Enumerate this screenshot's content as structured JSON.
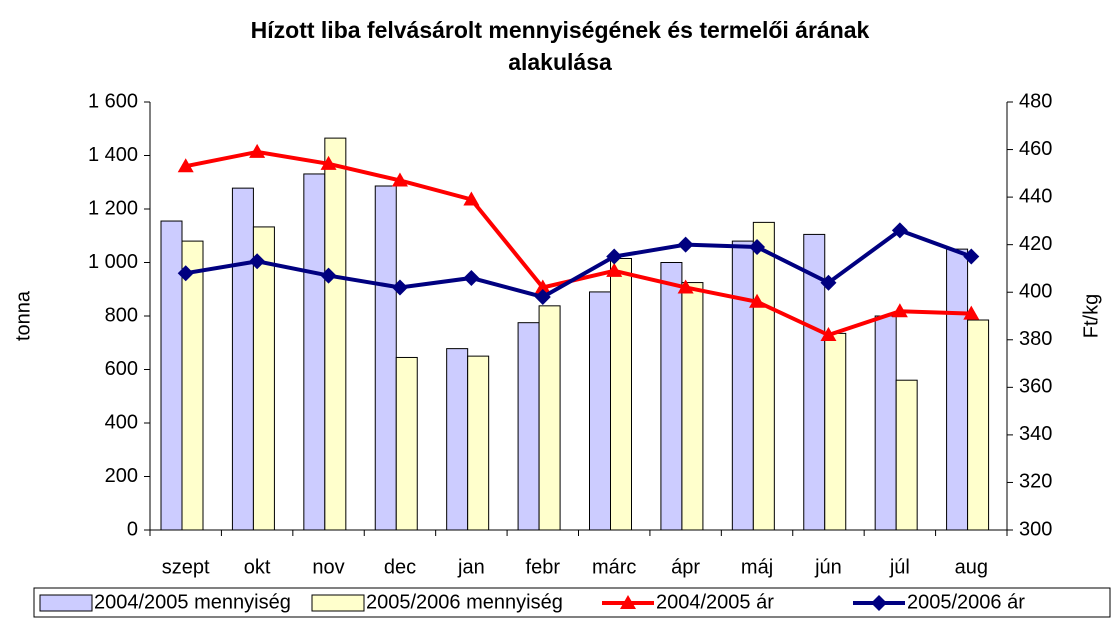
{
  "chart_data": {
    "type": "bar_line",
    "title": "Hízott liba felvásárolt mennyiségének és termelői árának",
    "title_line2": "alakulása",
    "ylabel": "tonna",
    "y2label": "Ft/kg",
    "categories": [
      "szept",
      "okt",
      "nov",
      "dec",
      "jan",
      "febr",
      "márc",
      "ápr",
      "máj",
      "jún",
      "júl",
      "aug"
    ],
    "ylim": [
      0,
      1600
    ],
    "yticks": [
      0,
      200,
      400,
      600,
      800,
      {
        "value": 1000,
        "label": "1 000"
      },
      {
        "value": 1200,
        "label": "1 200"
      },
      {
        "value": 1400,
        "label": "1 400"
      },
      {
        "value": 1600,
        "label": "1 600"
      }
    ],
    "y2lim": [
      300,
      480
    ],
    "y2ticks": [
      300,
      320,
      340,
      360,
      380,
      400,
      420,
      440,
      460,
      480
    ],
    "series": [
      {
        "name": "2004/2005 mennyiség",
        "type": "bar",
        "color": "#ccccff",
        "values": [
          1155,
          1278,
          1331,
          1286,
          678,
          775,
          890,
          1000,
          1080,
          1105,
          800,
          1050
        ]
      },
      {
        "name": "2005/2006 mennyiség",
        "type": "bar",
        "color": "#ffffcc",
        "values": [
          1080,
          1133,
          1465,
          645,
          650,
          838,
          1015,
          925,
          1150,
          735,
          560,
          785
        ]
      },
      {
        "name": "2004/2005 ár",
        "type": "line",
        "axis": "y2",
        "color": "#ff0000",
        "marker": "triangle",
        "values": [
          453,
          459,
          454,
          447,
          439,
          402,
          409,
          402,
          396,
          382,
          392,
          391
        ]
      },
      {
        "name": "2005/2006 ár",
        "type": "line",
        "axis": "y2",
        "color": "#000080",
        "marker": "diamond",
        "values": [
          408,
          413,
          407,
          402,
          406,
          398,
          415,
          420,
          419,
          404,
          426,
          415
        ]
      }
    ]
  }
}
